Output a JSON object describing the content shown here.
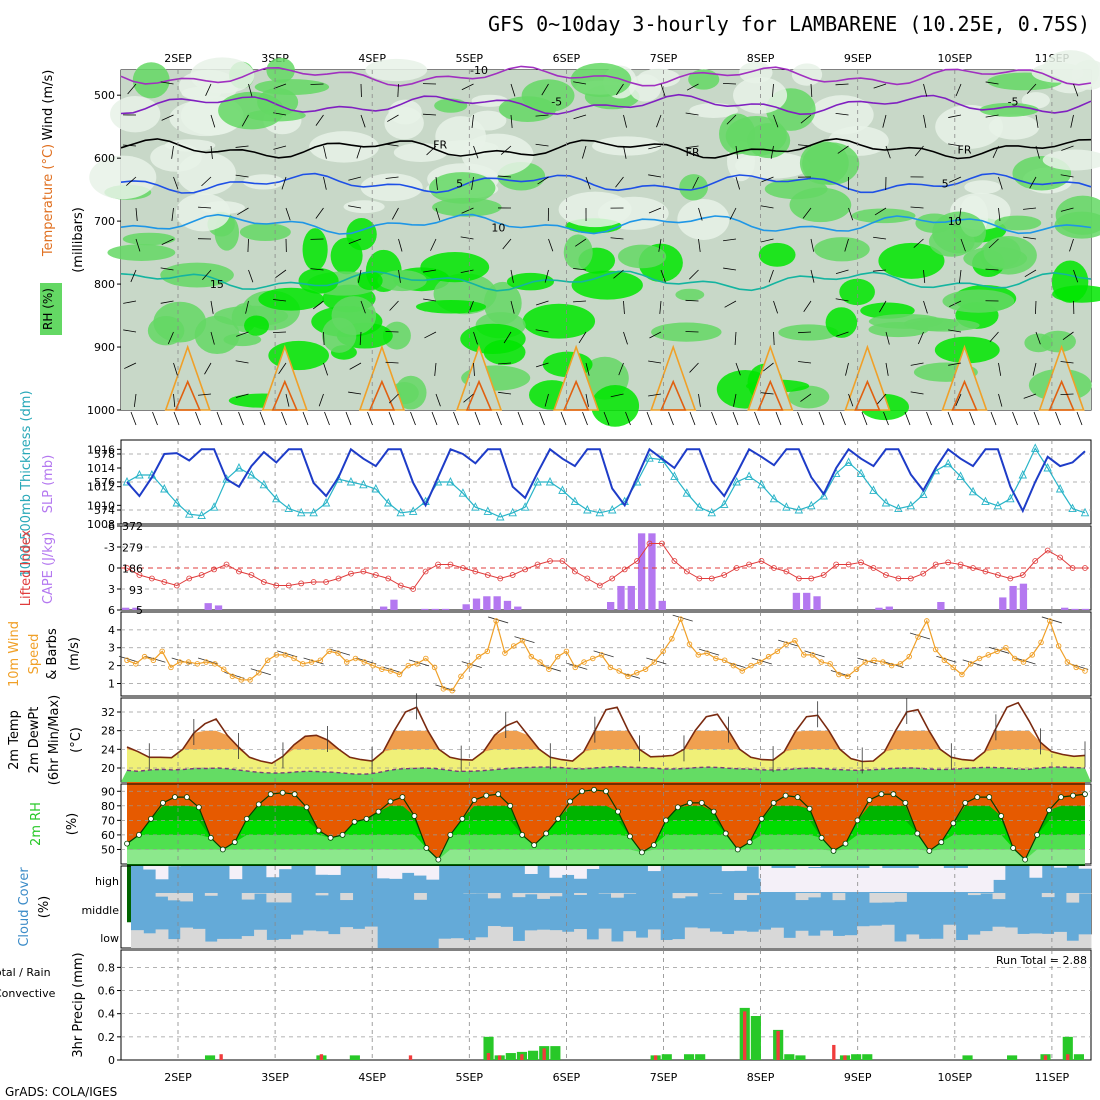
{
  "header": {
    "title": "GFS 0~10day 3-hourly for LAMBARENE (10.25E, 0.75S)",
    "footer": "GrADS: COLA/IGES"
  },
  "colors": {
    "rh_light": "#e8f2e8",
    "rh_mid": "#c8d8c8",
    "rh_green": "#64d864",
    "rh_bright": "#00e600",
    "slp_line": "#1e3cc8",
    "thickness_line": "#28b4c8",
    "lifted_line": "#e03c3c",
    "cape_bar": "#b478f0",
    "wind_line": "#f0a028",
    "temp_top": "#e65a00",
    "temp_mid": "#f0a050",
    "temp_low": "#f0f078",
    "dew_band": "#64dc64",
    "cloud_fill": "#64aad8",
    "cloud_gap": "#d8d8d8",
    "precip_total": "#28c828",
    "precip_conv": "#f03c3c"
  },
  "chart_data": [
    {
      "type": "heatmap",
      "panel": "upper-air",
      "ylabel": "(millibars)",
      "yticks": [
        500,
        600,
        700,
        800,
        900,
        1000
      ],
      "legend": [
        "RH (%)",
        "Temperature (°C)",
        "Wind (m/s)"
      ],
      "x": [
        "2SEP",
        "3SEP",
        "4SEP",
        "5SEP",
        "6SEP",
        "7SEP",
        "8SEP",
        "9SEP",
        "10SEP",
        "11SEP"
      ],
      "isotherm_labels": [
        {
          "label": "-10",
          "level": 460,
          "day": 3.1
        },
        {
          "label": "-5",
          "level": 510,
          "day": 3.9
        },
        {
          "label": "-5",
          "level": 510,
          "day": 8.6
        },
        {
          "label": "FR",
          "level": 578,
          "day": 2.7
        },
        {
          "label": "FR",
          "level": 590,
          "day": 5.3
        },
        {
          "label": "FR",
          "level": 586,
          "day": 8.1
        },
        {
          "label": "5",
          "level": 640,
          "day": 2.9
        },
        {
          "label": "5",
          "level": 640,
          "day": 7.9
        },
        {
          "label": "10",
          "level": 710,
          "day": 3.3
        },
        {
          "label": "10",
          "level": 700,
          "day": 8.0
        },
        {
          "label": "15",
          "level": 800,
          "day": 0.4
        }
      ]
    },
    {
      "type": "line",
      "panel": "slp-thickness",
      "ylabel_left": "1000-500mb Thickness (dm)",
      "ylabel_right": "SLP (mb)",
      "yticks_left": [
        574,
        576,
        578
      ],
      "yticks_right": [
        1008,
        1010,
        1012,
        1014,
        1016
      ],
      "series": [
        {
          "name": "SLP (mb)",
          "values": [
            1012.5,
            1011,
            1013,
            1015.5,
            1015.6,
            1014.8,
            1016,
            1016,
            1012.8,
            1012,
            1014.2,
            1015.7,
            1014.6,
            1016,
            1016,
            1012.4,
            1011,
            1013,
            1016,
            1015,
            1014.2,
            1016,
            1016,
            1012.4,
            1010,
            1013,
            1016,
            1015.5,
            1014.5,
            1016,
            1016,
            1012,
            1010.8,
            1013.5,
            1016,
            1015,
            1014.2,
            1016,
            1016,
            1011.8,
            1010,
            1013,
            1016,
            1015,
            1014,
            1016,
            1016,
            1012.6,
            1011,
            1013.4,
            1016,
            1015.2,
            1014.3,
            1016,
            1016,
            1013,
            1011.2,
            1014,
            1016,
            1015,
            1014.2,
            1016,
            1016,
            1013.3,
            1011.6,
            1014,
            1016,
            1015,
            1014.2,
            1016,
            1016,
            1012,
            1009.4,
            1012.5,
            1015.2,
            1014.2,
            1014.6,
            1015.8
          ]
        },
        {
          "name": "1000-500mb Thickness (dm)",
          "values": [
            576,
            576.5,
            576.5,
            575.5,
            574.5,
            573.7,
            573.6,
            574.2,
            576.2,
            577,
            576.5,
            575.8,
            574.8,
            574.1,
            573.8,
            573.8,
            574.5,
            576.2,
            576,
            575.8,
            575.5,
            574.5,
            573.8,
            573.9,
            574.6,
            576,
            576,
            575.2,
            574.2,
            573.9,
            573.5,
            573.8,
            574.2,
            576,
            576,
            575.4,
            574.6,
            574,
            573.8,
            574,
            574.6,
            576,
            577.7,
            577.6,
            576.4,
            575.2,
            574.2,
            573.8,
            574.4,
            576,
            576.4,
            575.8,
            574.8,
            574.2,
            574,
            574.3,
            575,
            576.6,
            577.4,
            576.6,
            575.4,
            574.5,
            574.1,
            574.3,
            575.1,
            576.8,
            577.3,
            576.4,
            575.3,
            574.6,
            574.3,
            574.8,
            576.5,
            578.4,
            577,
            575.5,
            574.1,
            573.8
          ]
        }
      ]
    },
    {
      "type": "bar",
      "panel": "lifted-cape",
      "ylabel_left": "Lifted Index",
      "ylabel_right": "CAPE (J/kg)",
      "yticks_left": [
        -6,
        -3,
        0,
        3,
        6
      ],
      "yticks_right": [
        5,
        93,
        186,
        279,
        372
      ],
      "series": [
        {
          "name": "Lifted Index",
          "values": [
            0,
            1,
            1.5,
            2,
            2.5,
            1.5,
            1,
            0.2,
            -0.5,
            0.5,
            1,
            2,
            2.5,
            2.5,
            2.2,
            2,
            2,
            1.5,
            0.8,
            0.5,
            1,
            1.5,
            2.5,
            3,
            0.5,
            -0.5,
            -0.5,
            0,
            0.5,
            1,
            1.5,
            1,
            0.2,
            -0.5,
            -1,
            -1,
            0.5,
            1.5,
            2.5,
            1.5,
            0.2,
            -1,
            -3.5,
            -3.5,
            -1,
            0.5,
            1.5,
            1.5,
            1,
            0,
            -0.5,
            -1,
            0,
            0.5,
            1.5,
            1.5,
            1,
            -0.5,
            -0.5,
            -0.8,
            0,
            1,
            1.5,
            1.5,
            0.8,
            -0.5,
            -0.8,
            -0.5,
            0,
            0.5,
            1,
            1.5,
            1,
            -1,
            -2.5,
            -1.5,
            0,
            0
          ]
        },
        {
          "name": "CAPE (J/kg)",
          "values": [
            15,
            15,
            0,
            0,
            0,
            0,
            0,
            0,
            35,
            25,
            0,
            0,
            0,
            0,
            0,
            5,
            5,
            5,
            0,
            0,
            0,
            0,
            0,
            0,
            0,
            20,
            50,
            0,
            0,
            10,
            10,
            10,
            0,
            30,
            55,
            65,
            65,
            45,
            20,
            0,
            0,
            0,
            0,
            0,
            0,
            0,
            0,
            40,
            110,
            110,
            340,
            340,
            45,
            0,
            0,
            0,
            0,
            0,
            0,
            0,
            0,
            0,
            0,
            0,
            0,
            80,
            80,
            65,
            0,
            0,
            0,
            0,
            5,
            15,
            20,
            0,
            0,
            0,
            0,
            40,
            0,
            0,
            0,
            0,
            5,
            60,
            110,
            120,
            5,
            0,
            0,
            15,
            10,
            10
          ]
        }
      ]
    },
    {
      "type": "line",
      "panel": "10m-wind",
      "ylabel": "10m Wind Speed & Barbs (m/s)",
      "yticks": [
        1,
        2,
        3,
        4
      ],
      "values": [
        2.3,
        2.1,
        2.5,
        2.3,
        2.8,
        1.9,
        2.2,
        2.2,
        2.1,
        2.2,
        2.1,
        1.8,
        1.4,
        1.2,
        1.2,
        1.6,
        2.3,
        2.6,
        2.6,
        2.4,
        2.1,
        2.2,
        2.3,
        2.8,
        2.7,
        2.2,
        2.4,
        2.2,
        2,
        1.8,
        1.7,
        1.5,
        2,
        2.1,
        2.4,
        1.9,
        0.7,
        0.6,
        1.4,
        2,
        2.5,
        2.8,
        4.5,
        2.7,
        3.1,
        3.4,
        2.5,
        2.2,
        1.8,
        2.5,
        2.8,
        1.9,
        2.2,
        2.4,
        2.6,
        1.9,
        1.7,
        1.4,
        1.6,
        1.8,
        2.2,
        2.8,
        3.5,
        4.6,
        3.2,
        2.6,
        2.7,
        2.4,
        2.3,
        2,
        1.7,
        2,
        2.2,
        2.5,
        2.8,
        3.2,
        3.4,
        2.6,
        2.6,
        2.2,
        2.1,
        1.5,
        1.4,
        1.8,
        2.2,
        2.3,
        2.2,
        2,
        2.1,
        2.5,
        3.6,
        4.5,
        2.9,
        2.3,
        1.9,
        1.5,
        2.1,
        2.4,
        2.6,
        2.8,
        3,
        2.4,
        2.2,
        2.6,
        3.3,
        4.5,
        3.1,
        2.2,
        1.9,
        1.7
      ]
    },
    {
      "type": "area",
      "panel": "2m-temp",
      "ylabel": "2m Temp 2m DewPt (6hr Min/Max) (°C)",
      "yticks": [
        20,
        24,
        28,
        32
      ],
      "series": [
        {
          "name": "2m Temp",
          "values": [
            24.5,
            23.5,
            22.3,
            22.3,
            22.2,
            24,
            27.5,
            29.5,
            30.5,
            27,
            24.5,
            22.3,
            21.5,
            21,
            22.5,
            25,
            26.8,
            27,
            26,
            24,
            22.3,
            21.8,
            21.5,
            23.5,
            28,
            32,
            33,
            28,
            24,
            22.3,
            21.8,
            21.7,
            23.5,
            27,
            29,
            30,
            27,
            24,
            22.3,
            21.8,
            21.5,
            23.5,
            28,
            32.5,
            33,
            28,
            24,
            22.4,
            22.5,
            22.7,
            24,
            28,
            31,
            31.5,
            28,
            24,
            22.3,
            21.8,
            21.7,
            23.5,
            27.8,
            31,
            31.3,
            28,
            24,
            22,
            21.4,
            21.5,
            23.5,
            28,
            32,
            32.5,
            28,
            24,
            22.3,
            21.8,
            21.6,
            23.5,
            28.5,
            33,
            34,
            30,
            25.5,
            23.5,
            22.9,
            22.5,
            22.7
          ]
        },
        {
          "name": "2m DewPt",
          "values": [
            19.5,
            19.3,
            19.6,
            19.7,
            19.6,
            19.7,
            19.9,
            19.9,
            20,
            19.8,
            19.5,
            19.2,
            19,
            18.9,
            19,
            19.2,
            19.3,
            19.2,
            19.1,
            18.9,
            18.7,
            18.7,
            19,
            19.5,
            19.8,
            19.9,
            20,
            19.9,
            19.6,
            19.3,
            19.3,
            19.4,
            19.6,
            19.8,
            20,
            20.1,
            20.2,
            20.2,
            20.1,
            19.9,
            19.8,
            20,
            20.2,
            20.3,
            20.2,
            20.1,
            20,
            19.8,
            19.8,
            19.9,
            20.1,
            20.2,
            20.1,
            19.9,
            19.8,
            19.7,
            19.6,
            19.6,
            19.7,
            19.9,
            20,
            19.9,
            19.7,
            19.6,
            19.5,
            19.6,
            19.7,
            19.9,
            20,
            20,
            19.8,
            19.7,
            19.7,
            19.8,
            20,
            20.1,
            20.1,
            20,
            19.8,
            19.7,
            20,
            20.2,
            20.2,
            20.1,
            20
          ]
        }
      ]
    },
    {
      "type": "area",
      "panel": "2m-rh",
      "ylabel": "2m RH (%)",
      "yticks": [
        50,
        60,
        70,
        80,
        90
      ],
      "values": [
        54,
        60,
        71,
        82,
        86,
        86,
        79,
        58,
        50,
        55,
        71,
        81,
        88,
        89,
        88,
        79,
        63,
        58,
        60,
        69,
        71,
        76,
        83,
        86,
        73,
        51,
        43,
        60,
        71,
        84,
        87,
        88,
        80,
        60,
        53,
        61,
        71,
        83,
        90,
        91,
        90,
        76,
        59,
        48,
        53,
        70,
        79,
        82,
        82,
        76,
        61,
        50,
        55,
        71,
        82,
        87,
        86,
        78,
        58,
        49,
        54,
        70,
        84,
        88,
        88,
        82,
        61,
        49,
        55,
        68,
        82,
        86,
        86,
        73,
        51,
        43,
        60,
        77,
        86,
        87,
        88
      ]
    },
    {
      "type": "heatmap",
      "panel": "cloud-cover",
      "ylabel": "Cloud Cover (%)",
      "levels": [
        "high",
        "middle",
        "low"
      ]
    },
    {
      "type": "bar",
      "panel": "precip",
      "ylabel": "3hr Precip (mm)",
      "legend": [
        "Total / Rain",
        "Convective"
      ],
      "run_total": "Run Total = 2.88",
      "yticks": [
        0,
        0.2,
        0.4,
        0.6,
        0.8
      ],
      "series": [
        {
          "name": "Total / Rain",
          "values": [
            0,
            0,
            0,
            0,
            0,
            0,
            0,
            0.04,
            0,
            0,
            0,
            0,
            0,
            0,
            0,
            0,
            0,
            0.04,
            0,
            0,
            0.04,
            0,
            0,
            0,
            0,
            0,
            0,
            0,
            0,
            0,
            0,
            0,
            0.2,
            0.04,
            0.06,
            0.07,
            0.08,
            0.12,
            0.12,
            0,
            0,
            0,
            0,
            0,
            0,
            0,
            0,
            0.04,
            0.05,
            0,
            0.05,
            0.05,
            0,
            0,
            0,
            0.45,
            0.38,
            0,
            0.26,
            0.05,
            0.04,
            0,
            0,
            0,
            0.04,
            0.05,
            0.05,
            0,
            0,
            0,
            0,
            0,
            0,
            0,
            0,
            0.04,
            0,
            0,
            0,
            0.04,
            0,
            0,
            0.05,
            0,
            0.2,
            0.05
          ]
        },
        {
          "name": "Convective",
          "values": [
            0,
            0,
            0,
            0,
            0,
            0,
            0,
            0,
            0.05,
            0,
            0,
            0,
            0,
            0,
            0,
            0,
            0,
            0.05,
            0,
            0,
            0,
            0,
            0,
            0,
            0,
            0.04,
            0,
            0,
            0,
            0,
            0,
            0,
            0.06,
            0.04,
            0,
            0.05,
            0,
            0.1,
            0,
            0,
            0,
            0,
            0,
            0,
            0,
            0,
            0,
            0.04,
            0,
            0,
            0,
            0,
            0,
            0,
            0,
            0.42,
            0,
            0,
            0.25,
            0,
            0,
            0,
            0,
            0.13,
            0.04,
            0,
            0,
            0,
            0,
            0,
            0,
            0,
            0,
            0,
            0,
            0,
            0,
            0,
            0,
            0,
            0,
            0,
            0.04,
            0,
            0.05,
            0
          ]
        }
      ]
    }
  ]
}
